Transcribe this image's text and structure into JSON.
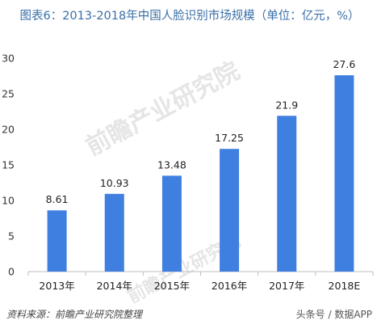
{
  "title": "图表6：2013-2018年中国人脸识别市场规模（单位：亿元，%）",
  "watermark": "前瞻产业研究院",
  "source": "资料来源：前瞻产业研究院整理",
  "credit": "头条号 / 数据APP",
  "colors": {
    "bar": "#3f7fe0",
    "axis": "#bfbfbf",
    "title": "#3a6fa8"
  },
  "chart_data": {
    "type": "bar",
    "title": "图表6：2013-2018年中国人脸识别市场规模（单位：亿元，%）",
    "xlabel": "",
    "ylabel": "",
    "categories": [
      "2013年",
      "2014年",
      "2015年",
      "2016年",
      "2017年",
      "2018E"
    ],
    "values": [
      8.61,
      10.93,
      13.48,
      17.25,
      21.9,
      27.6
    ],
    "value_labels": [
      "8.61",
      "10.93",
      "13.48",
      "17.25",
      "21.9",
      "27.6"
    ],
    "ylim": [
      0,
      30
    ],
    "yticks": [
      0,
      5,
      10,
      15,
      20,
      25,
      30
    ],
    "grid": false,
    "legend": "none"
  }
}
